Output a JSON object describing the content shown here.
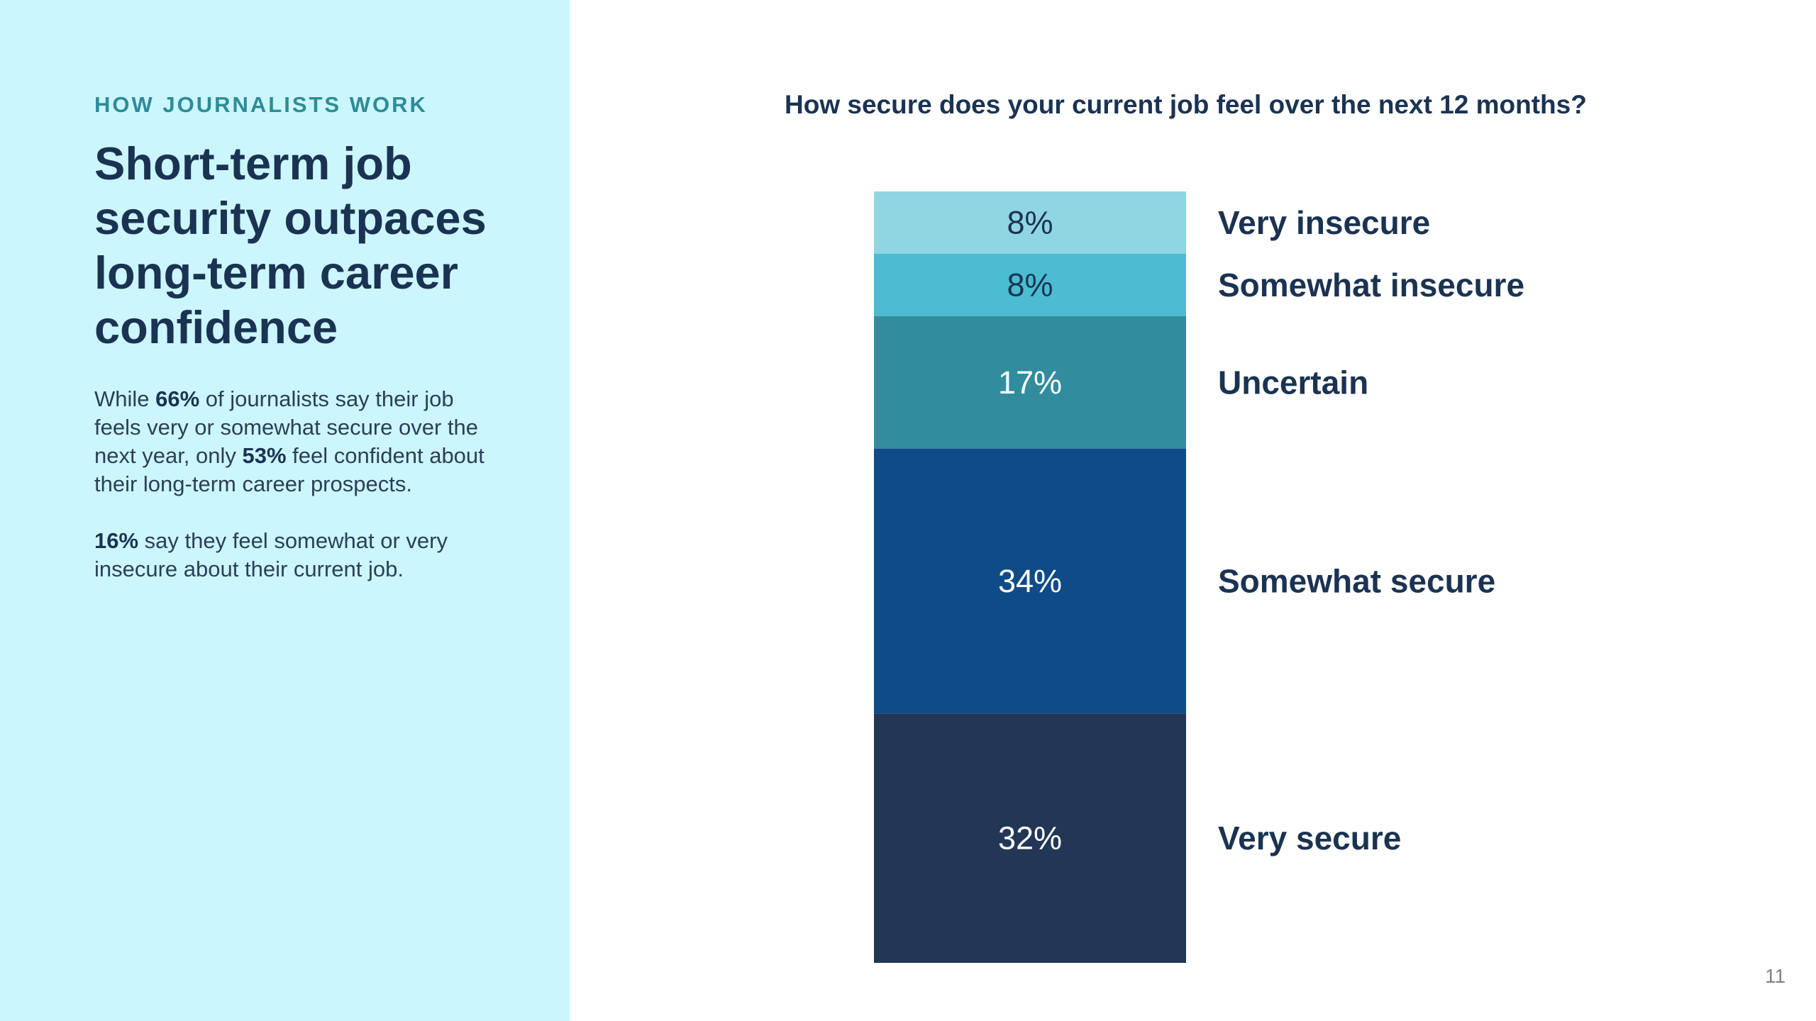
{
  "left_panel": {
    "eyebrow": "HOW JOURNALISTS WORK",
    "headline": "Short-term job security outpaces long-term career confidence",
    "paragraph1": {
      "t1": "While ",
      "b1": "66%",
      "t2": " of journalists say their job feels very or somewhat secure over the next year, only ",
      "b2": "53%",
      "t3": " feel confident about their long-term career prospects."
    },
    "paragraph2": {
      "b1": "16%",
      "t1": " say they feel somewhat or very insecure about their current job."
    }
  },
  "page_number": "11",
  "colors": {
    "panel_bg": "#ccf6fd",
    "eyebrow": "#2d8c97",
    "heading": "#1b3352"
  },
  "chart_data": {
    "type": "bar",
    "stacked": true,
    "title": "How secure does your current job feel over the next 12 months?",
    "unit": "%",
    "series": [
      {
        "name": "Very insecure",
        "value": 8,
        "label": "8%",
        "color": "#8fd6e2",
        "label_color": "#1b3352"
      },
      {
        "name": "Somewhat insecure",
        "value": 8,
        "label": "8%",
        "color": "#4bbcd1",
        "label_color": "#1b3352"
      },
      {
        "name": "Uncertain",
        "value": 17,
        "label": "17%",
        "color": "#318d9e",
        "label_color": "#ffffff"
      },
      {
        "name": "Somewhat secure",
        "value": 34,
        "label": "34%",
        "color": "#0f4b86",
        "label_color": "#ffffff"
      },
      {
        "name": "Very secure",
        "value": 32,
        "label": "32%",
        "color": "#223755",
        "label_color": "#ffffff"
      }
    ],
    "legend": "right",
    "grid": false
  }
}
